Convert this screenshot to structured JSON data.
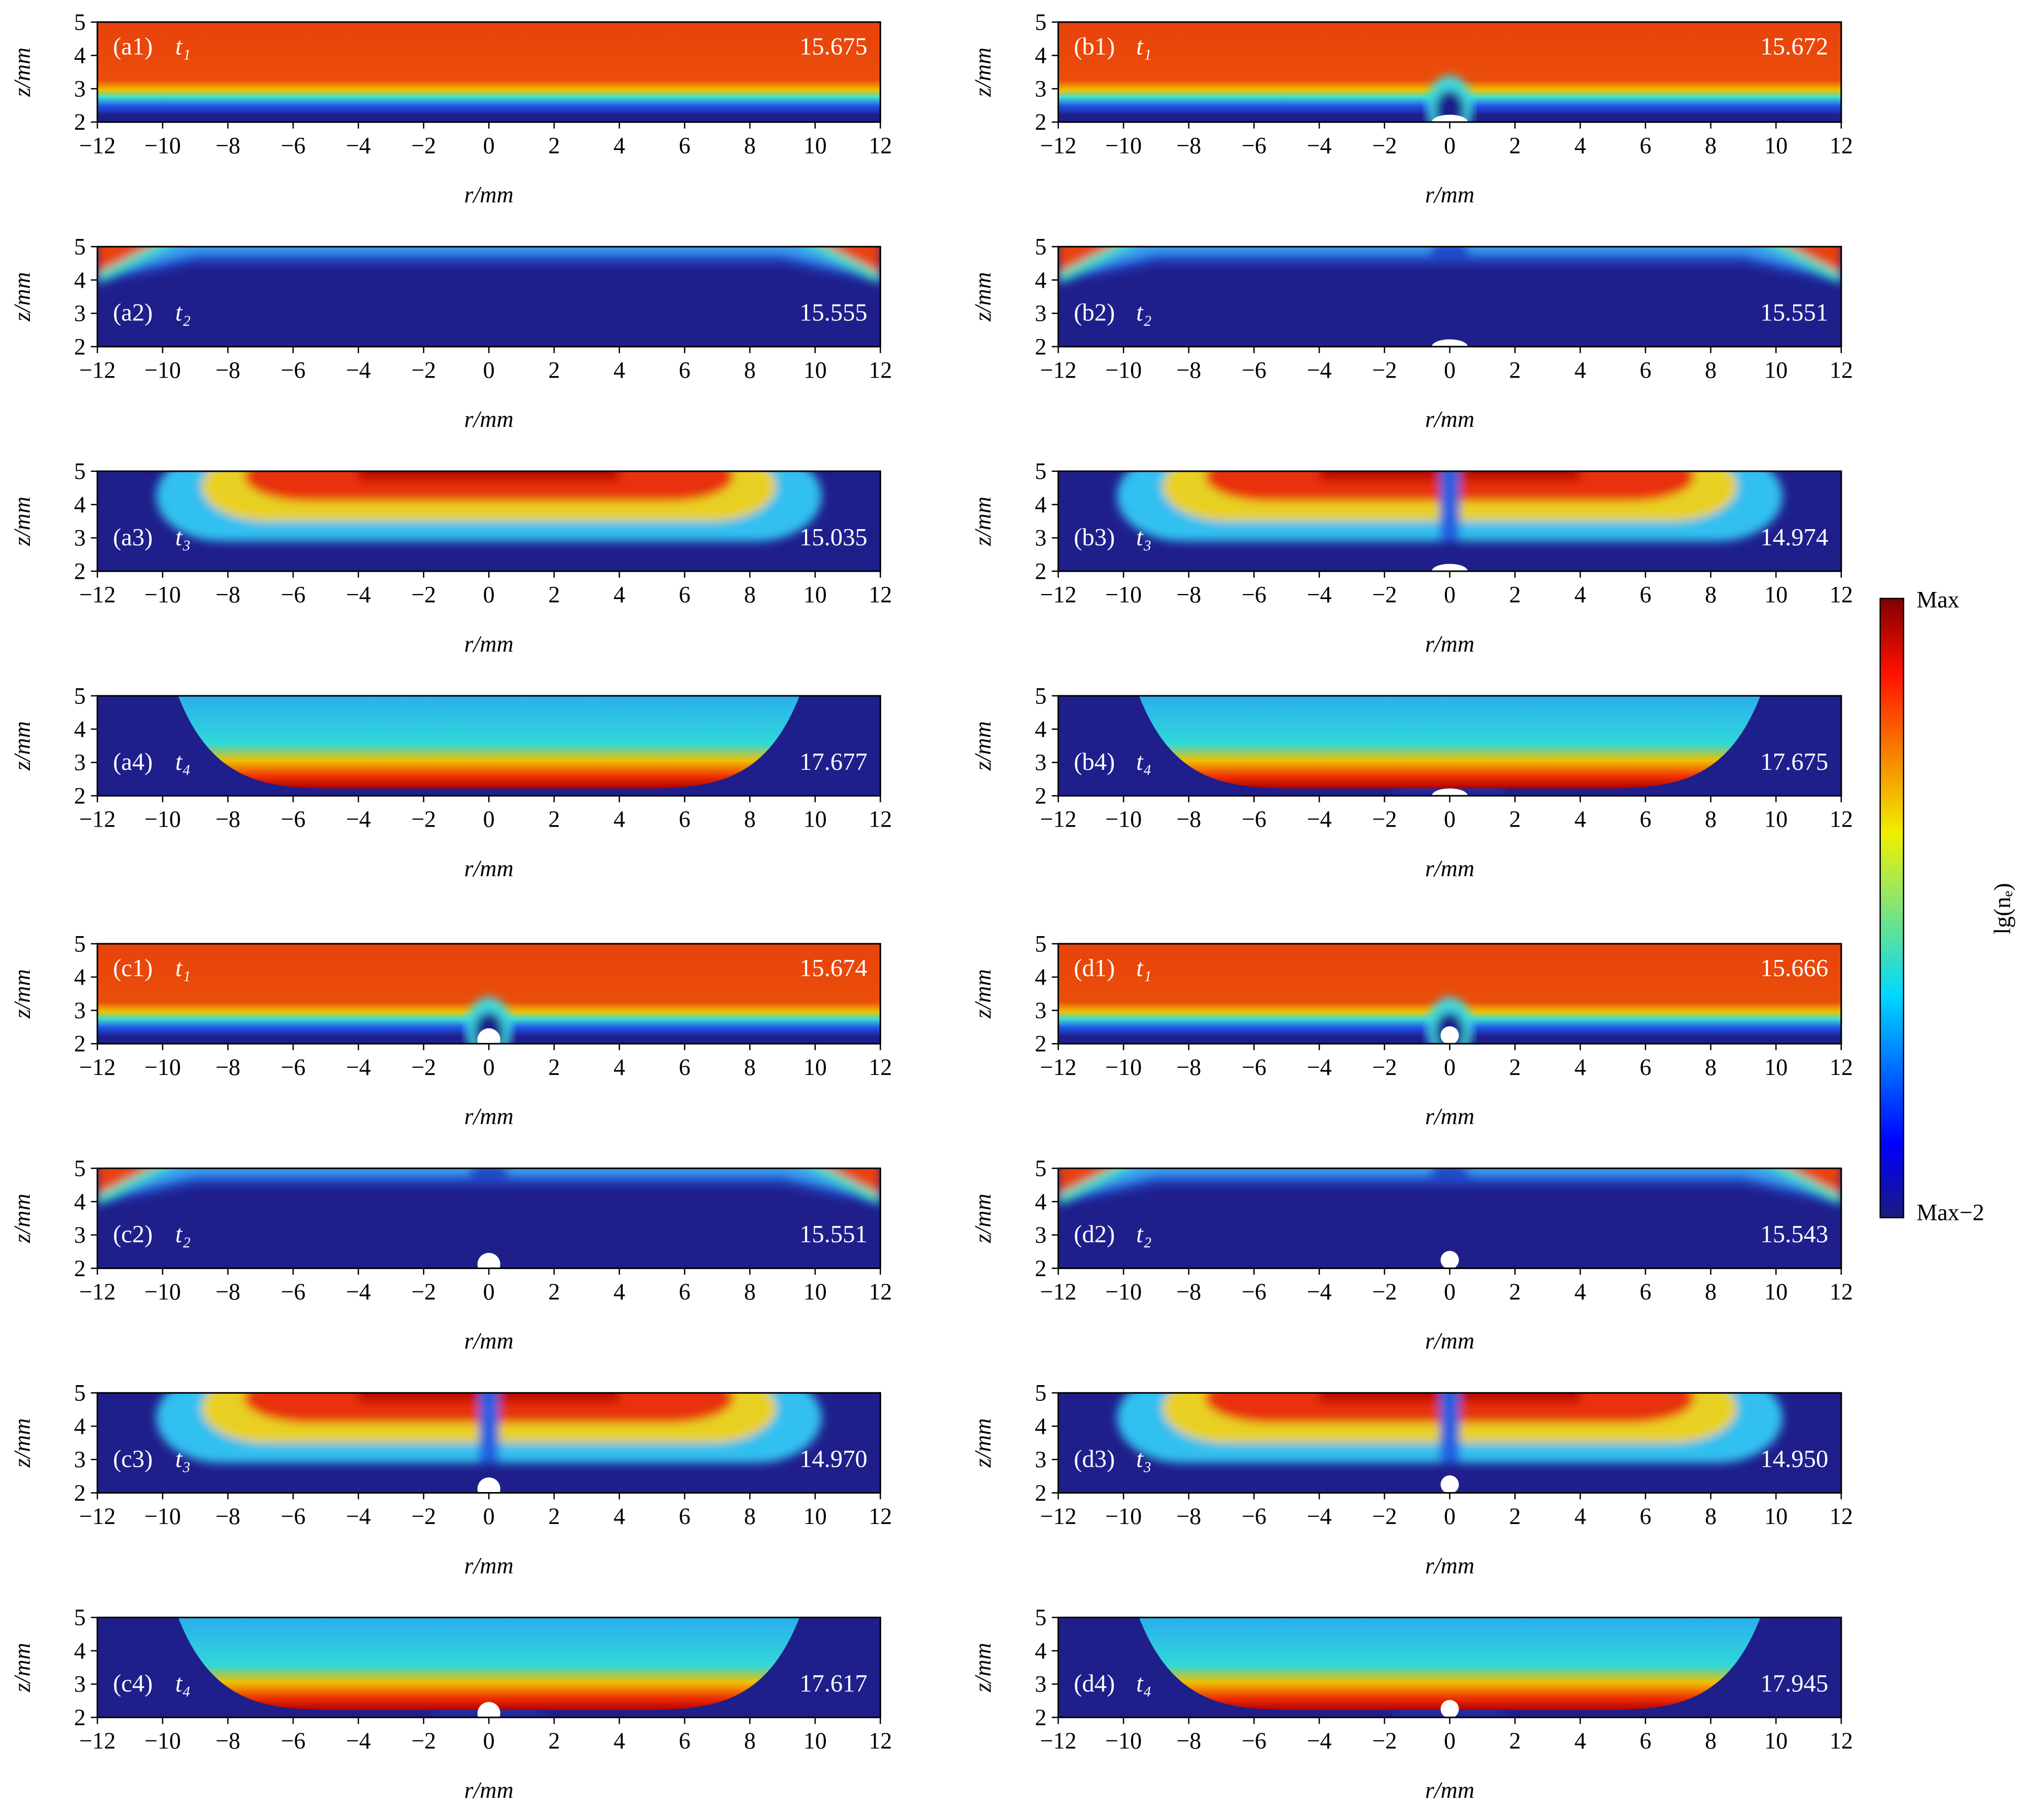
{
  "chart_data": [
    {
      "type": "heatmap",
      "label": "(a1)",
      "time": "t₁",
      "value": 15.675,
      "xlabel": "r/mm",
      "ylabel": "z/mm",
      "xlim": [
        -12,
        12
      ],
      "xticks": [
        {
          "value": -12,
          "label": "−12"
        },
        {
          "value": -10,
          "label": "−10"
        },
        {
          "value": -8,
          "label": "−8"
        },
        {
          "value": -6,
          "label": "−6"
        },
        {
          "value": -4,
          "label": "−4"
        },
        {
          "value": -2,
          "label": "−2"
        },
        0,
        2,
        4,
        6,
        8,
        10,
        12
      ],
      "ylim": [
        2,
        5
      ],
      "yticks": [
        2,
        3,
        4,
        5
      ]
    },
    {
      "type": "heatmap",
      "label": "(a2)",
      "time": "t₂",
      "value": 15.555,
      "xlabel": "r/mm",
      "ylabel": "z/mm",
      "xlim": [
        -12,
        12
      ],
      "xticks": [
        {
          "value": -12,
          "label": "−12"
        },
        {
          "value": -10,
          "label": "−10"
        },
        {
          "value": -8,
          "label": "−8"
        },
        {
          "value": -6,
          "label": "−6"
        },
        {
          "value": -4,
          "label": "−4"
        },
        {
          "value": -2,
          "label": "−2"
        },
        0,
        2,
        4,
        6,
        8,
        10,
        12
      ],
      "ylim": [
        2,
        5
      ],
      "yticks": [
        2,
        3,
        4,
        5
      ]
    },
    {
      "type": "heatmap",
      "label": "(a3)",
      "time": "t₃",
      "value": 15.035,
      "xlabel": "r/mm",
      "ylabel": "z/mm",
      "xlim": [
        -12,
        12
      ],
      "xticks": [
        {
          "value": -12,
          "label": "−12"
        },
        {
          "value": -10,
          "label": "−10"
        },
        {
          "value": -8,
          "label": "−8"
        },
        {
          "value": -6,
          "label": "−6"
        },
        {
          "value": -4,
          "label": "−4"
        },
        {
          "value": -2,
          "label": "−2"
        },
        0,
        2,
        4,
        6,
        8,
        10,
        12
      ],
      "ylim": [
        2,
        5
      ],
      "yticks": [
        2,
        3,
        4,
        5
      ]
    },
    {
      "type": "heatmap",
      "label": "(a4)",
      "time": "t₄",
      "value": 17.677,
      "xlabel": "r/mm",
      "ylabel": "z/mm",
      "xlim": [
        -12,
        12
      ],
      "xticks": [
        {
          "value": -12,
          "label": "−12"
        },
        {
          "value": -10,
          "label": "−10"
        },
        {
          "value": -8,
          "label": "−8"
        },
        {
          "value": -6,
          "label": "−6"
        },
        {
          "value": -4,
          "label": "−4"
        },
        {
          "value": -2,
          "label": "−2"
        },
        0,
        2,
        4,
        6,
        8,
        10,
        12
      ],
      "ylim": [
        2,
        5
      ],
      "yticks": [
        2,
        3,
        4,
        5
      ]
    },
    {
      "type": "heatmap",
      "label": "(b1)",
      "time": "t₁",
      "value": 15.672,
      "xlabel": "r/mm",
      "ylabel": "z/mm",
      "xlim": [
        -12,
        12
      ],
      "xticks": [
        {
          "value": -12,
          "label": "−12"
        },
        {
          "value": -10,
          "label": "−10"
        },
        {
          "value": -8,
          "label": "−8"
        },
        {
          "value": -6,
          "label": "−6"
        },
        {
          "value": -4,
          "label": "−4"
        },
        {
          "value": -2,
          "label": "−2"
        },
        0,
        2,
        4,
        6,
        8,
        10,
        12
      ],
      "ylim": [
        2,
        5
      ],
      "yticks": [
        2,
        3,
        4,
        5
      ]
    },
    {
      "type": "heatmap",
      "label": "(b2)",
      "time": "t₂",
      "value": 15.551,
      "xlabel": "r/mm",
      "ylabel": "z/mm",
      "xlim": [
        -12,
        12
      ],
      "xticks": [
        {
          "value": -12,
          "label": "−12"
        },
        {
          "value": -10,
          "label": "−10"
        },
        {
          "value": -8,
          "label": "−8"
        },
        {
          "value": -6,
          "label": "−6"
        },
        {
          "value": -4,
          "label": "−4"
        },
        {
          "value": -2,
          "label": "−2"
        },
        0,
        2,
        4,
        6,
        8,
        10,
        12
      ],
      "ylim": [
        2,
        5
      ],
      "yticks": [
        2,
        3,
        4,
        5
      ]
    },
    {
      "type": "heatmap",
      "label": "(b3)",
      "time": "t₃",
      "value": 14.974,
      "xlabel": "r/mm",
      "ylabel": "z/mm",
      "xlim": [
        -12,
        12
      ],
      "xticks": [
        {
          "value": -12,
          "label": "−12"
        },
        {
          "value": -10,
          "label": "−10"
        },
        {
          "value": -8,
          "label": "−8"
        },
        {
          "value": -6,
          "label": "−6"
        },
        {
          "value": -4,
          "label": "−4"
        },
        {
          "value": -2,
          "label": "−2"
        },
        0,
        2,
        4,
        6,
        8,
        10,
        12
      ],
      "ylim": [
        2,
        5
      ],
      "yticks": [
        2,
        3,
        4,
        5
      ]
    },
    {
      "type": "heatmap",
      "label": "(b4)",
      "time": "t₄",
      "value": 17.675,
      "xlabel": "r/mm",
      "ylabel": "z/mm",
      "xlim": [
        -12,
        12
      ],
      "xticks": [
        {
          "value": -12,
          "label": "−12"
        },
        {
          "value": -10,
          "label": "−10"
        },
        {
          "value": -8,
          "label": "−8"
        },
        {
          "value": -6,
          "label": "−6"
        },
        {
          "value": -4,
          "label": "−4"
        },
        {
          "value": -2,
          "label": "−2"
        },
        0,
        2,
        4,
        6,
        8,
        10,
        12
      ],
      "ylim": [
        2,
        5
      ],
      "yticks": [
        2,
        3,
        4,
        5
      ]
    },
    {
      "type": "heatmap",
      "label": "(c1)",
      "time": "t₁",
      "value": 15.674,
      "xlabel": "r/mm",
      "ylabel": "z/mm",
      "xlim": [
        -12,
        12
      ],
      "xticks": [
        {
          "value": -12,
          "label": "−12"
        },
        {
          "value": -10,
          "label": "−10"
        },
        {
          "value": -8,
          "label": "−8"
        },
        {
          "value": -6,
          "label": "−6"
        },
        {
          "value": -4,
          "label": "−4"
        },
        {
          "value": -2,
          "label": "−2"
        },
        0,
        2,
        4,
        6,
        8,
        10,
        12
      ],
      "ylim": [
        2,
        5
      ],
      "yticks": [
        2,
        3,
        4,
        5
      ]
    },
    {
      "type": "heatmap",
      "label": "(c2)",
      "time": "t₂",
      "value": 15.551,
      "xlabel": "r/mm",
      "ylabel": "z/mm",
      "xlim": [
        -12,
        12
      ],
      "xticks": [
        {
          "value": -12,
          "label": "−12"
        },
        {
          "value": -10,
          "label": "−10"
        },
        {
          "value": -8,
          "label": "−8"
        },
        {
          "value": -6,
          "label": "−6"
        },
        {
          "value": -4,
          "label": "−4"
        },
        {
          "value": -2,
          "label": "−2"
        },
        0,
        2,
        4,
        6,
        8,
        10,
        12
      ],
      "ylim": [
        2,
        5
      ],
      "yticks": [
        2,
        3,
        4,
        5
      ]
    },
    {
      "type": "heatmap",
      "label": "(c3)",
      "time": "t₃",
      "value": 14.97,
      "value_label": "14.970",
      "xlabel": "r/mm",
      "ylabel": "z/mm",
      "xlim": [
        -12,
        12
      ],
      "xticks": [
        {
          "value": -12,
          "label": "−12"
        },
        {
          "value": -10,
          "label": "−10"
        },
        {
          "value": -8,
          "label": "−8"
        },
        {
          "value": -6,
          "label": "−6"
        },
        {
          "value": -4,
          "label": "−4"
        },
        {
          "value": -2,
          "label": "−2"
        },
        0,
        2,
        4,
        6,
        8,
        10,
        12
      ],
      "ylim": [
        2,
        5
      ],
      "yticks": [
        2,
        3,
        4,
        5
      ]
    },
    {
      "type": "heatmap",
      "label": "(c4)",
      "time": "t₄",
      "value": 17.617,
      "xlabel": "r/mm",
      "ylabel": "z/mm",
      "xlim": [
        -12,
        12
      ],
      "xticks": [
        {
          "value": -12,
          "label": "−12"
        },
        {
          "value": -10,
          "label": "−10"
        },
        {
          "value": -8,
          "label": "−8"
        },
        {
          "value": -6,
          "label": "−6"
        },
        {
          "value": -4,
          "label": "−4"
        },
        {
          "value": -2,
          "label": "−2"
        },
        0,
        2,
        4,
        6,
        8,
        10,
        12
      ],
      "ylim": [
        2,
        5
      ],
      "yticks": [
        2,
        3,
        4,
        5
      ]
    },
    {
      "type": "heatmap",
      "label": "(d1)",
      "time": "t₁",
      "value": 15.666,
      "xlabel": "r/mm",
      "ylabel": "z/mm",
      "xlim": [
        -12,
        12
      ],
      "xticks": [
        {
          "value": -12,
          "label": "−12"
        },
        {
          "value": -10,
          "label": "−10"
        },
        {
          "value": -8,
          "label": "−8"
        },
        {
          "value": -6,
          "label": "−6"
        },
        {
          "value": -4,
          "label": "−4"
        },
        {
          "value": -2,
          "label": "−2"
        },
        0,
        2,
        4,
        6,
        8,
        10,
        12
      ],
      "ylim": [
        2,
        5
      ],
      "yticks": [
        2,
        3,
        4,
        5
      ]
    },
    {
      "type": "heatmap",
      "label": "(d2)",
      "time": "t₂",
      "value": 15.543,
      "xlabel": "r/mm",
      "ylabel": "z/mm",
      "xlim": [
        -12,
        12
      ],
      "xticks": [
        {
          "value": -12,
          "label": "−12"
        },
        {
          "value": -10,
          "label": "−10"
        },
        {
          "value": -8,
          "label": "−8"
        },
        {
          "value": -6,
          "label": "−6"
        },
        {
          "value": -4,
          "label": "−4"
        },
        {
          "value": -2,
          "label": "−2"
        },
        0,
        2,
        4,
        6,
        8,
        10,
        12
      ],
      "ylim": [
        2,
        5
      ],
      "yticks": [
        2,
        3,
        4,
        5
      ]
    },
    {
      "type": "heatmap",
      "label": "(d3)",
      "time": "t₃",
      "value": 14.95,
      "value_label": "14.950",
      "xlabel": "r/mm",
      "ylabel": "z/mm",
      "xlim": [
        -12,
        12
      ],
      "xticks": [
        {
          "value": -12,
          "label": "−12"
        },
        {
          "value": -10,
          "label": "−10"
        },
        {
          "value": -8,
          "label": "−8"
        },
        {
          "value": -6,
          "label": "−6"
        },
        {
          "value": -4,
          "label": "−4"
        },
        {
          "value": -2,
          "label": "−2"
        },
        0,
        2,
        4,
        6,
        8,
        10,
        12
      ],
      "ylim": [
        2,
        5
      ],
      "yticks": [
        2,
        3,
        4,
        5
      ]
    },
    {
      "type": "heatmap",
      "label": "(d4)",
      "time": "t₄",
      "value": 17.945,
      "xlabel": "r/mm",
      "ylabel": "z/mm",
      "xlim": [
        -12,
        12
      ],
      "xticks": [
        {
          "value": -12,
          "label": "−12"
        },
        {
          "value": -10,
          "label": "−10"
        },
        {
          "value": -8,
          "label": "−8"
        },
        {
          "value": -6,
          "label": "−6"
        },
        {
          "value": -4,
          "label": "−4"
        },
        {
          "value": -2,
          "label": "−2"
        },
        0,
        2,
        4,
        6,
        8,
        10,
        12
      ],
      "ylim": [
        2,
        5
      ],
      "yticks": [
        2,
        3,
        4,
        5
      ]
    }
  ],
  "colorbar": {
    "max_label": "Max",
    "min_label": "Max−2",
    "label": "lg(nₑ)"
  }
}
